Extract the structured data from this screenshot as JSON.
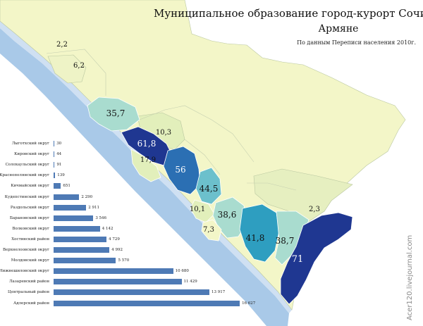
{
  "title": "Муниципальное образование город-курорт Сочи",
  "subtitle": "Армяне",
  "source_note": "По данным Переписи населения 2010г.",
  "watermark": "Acer120.livejournal.com",
  "colors": {
    "sea": "#a9c9e8",
    "coast": "#cfe0f2",
    "low": "#f3f6c8",
    "light": "#e2efbb",
    "mid_light": "#a9dccf",
    "mid": "#6cc0cc",
    "teal": "#2e9ec0",
    "blue": "#2b6fb3",
    "dark": "#1f3791",
    "bar": "#4e7ab5"
  },
  "regions": [
    {
      "id": "r1",
      "value": "2,2"
    },
    {
      "id": "r2",
      "value": "6,2"
    },
    {
      "id": "r3",
      "value": "35,7"
    },
    {
      "id": "r4",
      "value": "10,3"
    },
    {
      "id": "r5",
      "value": "61,8"
    },
    {
      "id": "r6",
      "value": "17,9"
    },
    {
      "id": "r7",
      "value": "56"
    },
    {
      "id": "r8",
      "value": "44,5"
    },
    {
      "id": "r9",
      "value": "10,1"
    },
    {
      "id": "r10",
      "value": "38,6"
    },
    {
      "id": "r11",
      "value": "7,3"
    },
    {
      "id": "r12",
      "value": "41,8"
    },
    {
      "id": "r13",
      "value": "38,7"
    },
    {
      "id": "r14",
      "value": "71"
    },
    {
      "id": "r15",
      "value": "2,3"
    }
  ],
  "chart_data": {
    "type": "bar",
    "orientation": "horizontal",
    "categories": [
      "Лыготхский округ",
      "Кировский округ",
      "Солохаульский округ",
      "Краснополянский округ",
      "Кичмайский округ",
      "Кудепстинский округ",
      "Раздольский округ",
      "Барановский округ",
      "Волковский округ",
      "Хостинский район",
      "Верхнелоовский округ",
      "Молдовский округ",
      "Нижнешиловский округ",
      "Лазаревский район",
      "Центральный район",
      "Адлерский район"
    ],
    "values": [
      30,
      44,
      91,
      139,
      651,
      2290,
      2911,
      3546,
      4142,
      4729,
      4992,
      5570,
      10680,
      11429,
      13917,
      16627
    ],
    "value_labels": [
      "30",
      "44",
      "91",
      "139",
      "651",
      "2 290",
      "2 911",
      "3 546",
      "4 142",
      "4 729",
      "4 992",
      "5 570",
      "10 680",
      "11 429",
      "13 917",
      "16 627"
    ],
    "xlim": [
      0,
      17000
    ]
  }
}
